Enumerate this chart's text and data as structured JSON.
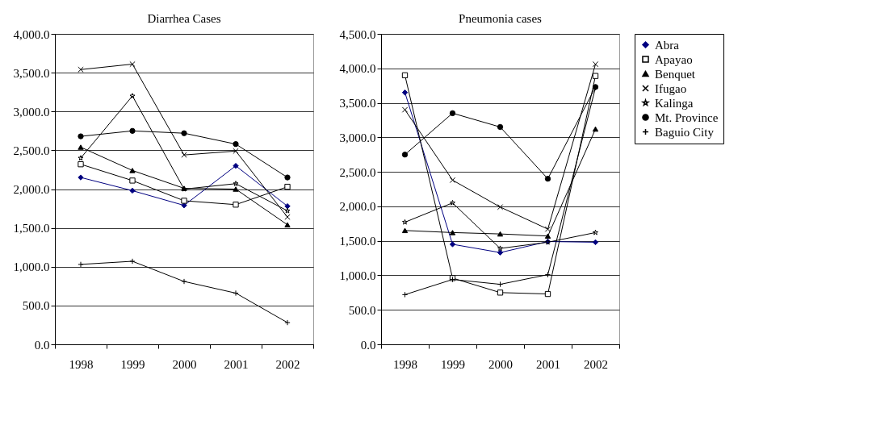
{
  "chart_data": [
    {
      "type": "line",
      "title": "Diarrhea Cases",
      "categories": [
        "1998",
        "1999",
        "2000",
        "2001",
        "2002"
      ],
      "ylim": [
        0,
        4000
      ],
      "yticks": [
        {
          "value": 0,
          "label": "0.0"
        },
        {
          "value": 500,
          "label": "500.0"
        },
        {
          "value": 1000,
          "label": "1,000.0"
        },
        {
          "value": 1500,
          "label": "1,500.0"
        },
        {
          "value": 2000,
          "label": "2,000.0"
        },
        {
          "value": 2500,
          "label": "2,500.0"
        },
        {
          "value": 3000,
          "label": "3,000.0"
        },
        {
          "value": 3500,
          "label": "3,500.0"
        },
        {
          "value": 4000,
          "label": "4,000.0"
        }
      ],
      "grid": "y",
      "legend": "right",
      "line_style": "solid",
      "series": [
        {
          "name": "Abra",
          "color": "#000080",
          "marker": "diamond",
          "values": [
            2150,
            1980,
            1790,
            2300,
            1780
          ]
        },
        {
          "name": "Apayao",
          "color": "#000000",
          "marker": "square",
          "values": [
            2320,
            2110,
            1850,
            1800,
            2030
          ]
        },
        {
          "name": "Benquet",
          "color": "#000000",
          "marker": "triangle",
          "values": [
            2540,
            2240,
            2010,
            2000,
            1540
          ]
        },
        {
          "name": "Ifugao",
          "color": "#000000",
          "marker": "cross",
          "values": [
            3540,
            3610,
            2440,
            2490,
            1640
          ]
        },
        {
          "name": "Kalinga",
          "color": "#000000",
          "marker": "star",
          "values": [
            2400,
            3200,
            2000,
            2070,
            1720
          ]
        },
        {
          "name": "Mt. Province",
          "color": "#000000",
          "marker": "circle",
          "values": [
            2680,
            2750,
            2720,
            2580,
            2150
          ]
        },
        {
          "name": "Baguio City",
          "color": "#000000",
          "marker": "plus",
          "values": [
            1030,
            1070,
            810,
            660,
            280
          ]
        }
      ]
    },
    {
      "type": "line",
      "title": "Pneumonia cases",
      "categories": [
        "1998",
        "1999",
        "2000",
        "2001",
        "2002"
      ],
      "ylim": [
        0,
        4500
      ],
      "yticks": [
        {
          "value": 0,
          "label": "0.0"
        },
        {
          "value": 500,
          "label": "500.0"
        },
        {
          "value": 1000,
          "label": "1,000.0"
        },
        {
          "value": 1500,
          "label": "1,500.0"
        },
        {
          "value": 2000,
          "label": "2,000.0"
        },
        {
          "value": 2500,
          "label": "2,500.0"
        },
        {
          "value": 3000,
          "label": "3,000.0"
        },
        {
          "value": 3500,
          "label": "3,500.0"
        },
        {
          "value": 4000,
          "label": "4,000.0"
        },
        {
          "value": 4500,
          "label": "4,500.0"
        }
      ],
      "grid": "y",
      "legend": "right",
      "line_style": "solid",
      "series": [
        {
          "name": "Abra",
          "color": "#000080",
          "marker": "diamond",
          "values": [
            3650,
            1450,
            1330,
            1490,
            1480
          ]
        },
        {
          "name": "Apayao",
          "color": "#000000",
          "marker": "square",
          "values": [
            3900,
            960,
            750,
            730,
            3890
          ]
        },
        {
          "name": "Benquet",
          "color": "#000000",
          "marker": "triangle",
          "values": [
            1650,
            1620,
            1600,
            1570,
            3120
          ]
        },
        {
          "name": "Ifugao",
          "color": "#000000",
          "marker": "cross",
          "values": [
            3400,
            2380,
            1990,
            1670,
            4060
          ]
        },
        {
          "name": "Kalinga",
          "color": "#000000",
          "marker": "star",
          "values": [
            1770,
            2050,
            1390,
            1480,
            1620
          ]
        },
        {
          "name": "Mt. Province",
          "color": "#000000",
          "marker": "circle",
          "values": [
            2750,
            3350,
            3150,
            2400,
            3730
          ]
        },
        {
          "name": "Baguio City",
          "color": "#000000",
          "marker": "plus",
          "values": [
            720,
            940,
            870,
            1010,
            3720
          ]
        }
      ]
    }
  ]
}
